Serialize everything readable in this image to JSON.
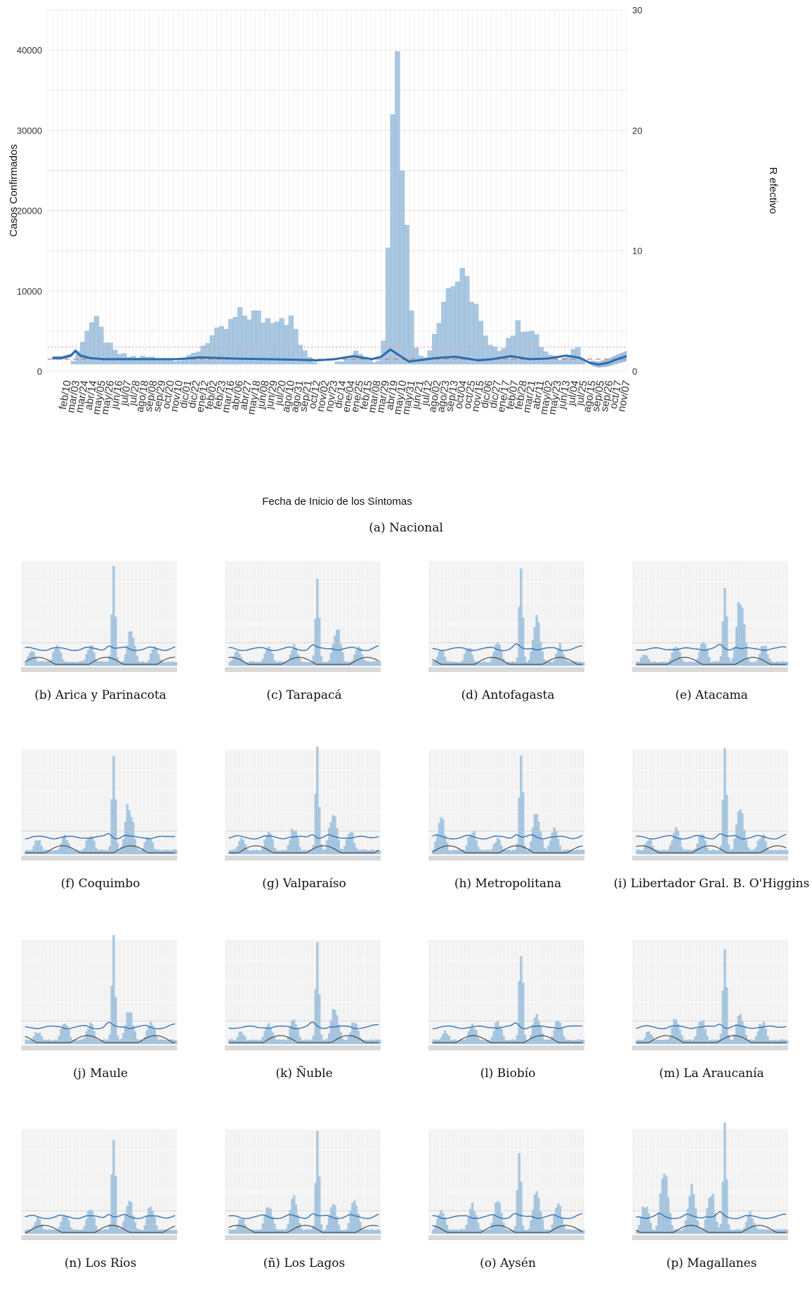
{
  "figure": {
    "main_caption": "(a) Nacional",
    "sub_captions": [
      "(b) Arica y Parinacota",
      "(c) Tarapacá",
      "(d) Antofagasta",
      "(e) Atacama",
      "(f) Coquimbo",
      "(g) Valparaíso",
      "(h) Metropolitana",
      "(i) Libertador Gral. B. O'Higgins",
      "(j) Maule",
      "(k) Ñuble",
      "(l) Biobío",
      "(m) La Araucanía",
      "(n) Los Ríos",
      "(ñ) Los Lagos",
      "(o) Aysén",
      "(p) Magallanes"
    ]
  },
  "colors": {
    "bars": "#a9c7e0",
    "bars_edge": "#7ea9cd",
    "r_line": "#2b6cb0",
    "r_band": "#7fa8cf",
    "ref_dotted": "#e8a0a0",
    "ref_dashed": "#e07070",
    "panel_bg": "#ebebeb",
    "grid": "#ffffff"
  },
  "chart_data": [
    {
      "type": "bar",
      "panel": "Nacional",
      "xlabel": "Fecha de Inicio de los Síntomas",
      "ylabel": "Casos Confirmados",
      "ylabel_right": "R efectivo",
      "ylim": [
        0,
        45000
      ],
      "y_ticks": [
        0,
        10000,
        20000,
        30000,
        40000
      ],
      "ylim_right": [
        0,
        30
      ],
      "y_ticks_right": [
        0,
        10,
        20,
        30
      ],
      "x_ticks": [
        "feb/10",
        "mar/03",
        "mar/24",
        "abr/14",
        "may/05",
        "may/26",
        "jun/16",
        "jul/07",
        "jul/28",
        "ago/18",
        "sep/08",
        "sep/29",
        "oct/20",
        "nov/10",
        "dic/01",
        "dic/22",
        "ene/12",
        "feb/02",
        "feb/23",
        "mar/16",
        "abr/06",
        "abr/27",
        "may/18",
        "jun/08",
        "jun/29",
        "jul/20",
        "ago/10",
        "ago/31",
        "sep/21",
        "oct/12",
        "nov/02",
        "nov/23",
        "dic/14",
        "ene/04",
        "ene/25",
        "feb/15",
        "mar/08",
        "mar/29",
        "abr/19",
        "may/10",
        "may/31",
        "jun/21",
        "jul/12",
        "ago/02",
        "ago/23",
        "sep/13",
        "oct/04",
        "oct/25",
        "nov/15",
        "dic/06",
        "dic/27",
        "ene/17",
        "feb/07",
        "feb/28",
        "mar/21",
        "abr/11",
        "may/02",
        "may/23",
        "jun/13",
        "jul/04",
        "jul/25",
        "ago/15",
        "sep/05",
        "sep/26",
        "oct/17",
        "nov/07"
      ],
      "cases_profile": [
        [
          0,
          0
        ],
        [
          3,
          200
        ],
        [
          6,
          1500
        ],
        [
          8,
          5000
        ],
        [
          10,
          6300
        ],
        [
          12,
          4500
        ],
        [
          14,
          2500
        ],
        [
          17,
          1800
        ],
        [
          22,
          1700
        ],
        [
          27,
          1450
        ],
        [
          30,
          1500
        ],
        [
          32,
          2300
        ],
        [
          35,
          4200
        ],
        [
          38,
          5000
        ],
        [
          41,
          6800
        ],
        [
          44,
          7200
        ],
        [
          47,
          6400
        ],
        [
          50,
          7300
        ],
        [
          53,
          6000
        ],
        [
          55,
          2500
        ],
        [
          58,
          1000
        ],
        [
          61,
          700
        ],
        [
          63,
          1200
        ],
        [
          65,
          2000
        ],
        [
          67,
          2600
        ],
        [
          69,
          1600
        ],
        [
          71,
          1000
        ],
        [
          72,
          1600
        ],
        [
          73,
          7000
        ],
        [
          74,
          30000
        ],
        [
          75,
          42000
        ],
        [
          76,
          35000
        ],
        [
          77,
          22000
        ],
        [
          78,
          12000
        ],
        [
          79,
          5000
        ],
        [
          80,
          2000
        ],
        [
          81,
          1500
        ],
        [
          82,
          2000
        ],
        [
          84,
          6000
        ],
        [
          86,
          10000
        ],
        [
          88,
          11500
        ],
        [
          90,
          11000
        ],
        [
          92,
          9500
        ],
        [
          94,
          4500
        ],
        [
          96,
          2500
        ],
        [
          98,
          3000
        ],
        [
          100,
          4500
        ],
        [
          102,
          5800
        ],
        [
          104,
          5500
        ],
        [
          106,
          3500
        ],
        [
          108,
          2000
        ],
        [
          110,
          1500
        ],
        [
          112,
          1600
        ],
        [
          113,
          2800
        ],
        [
          114,
          3800
        ],
        [
          115,
          2200
        ],
        [
          116,
          600
        ],
        [
          117,
          150
        ],
        [
          119,
          30
        ],
        [
          124,
          0
        ]
      ],
      "r_profile": [
        [
          1,
          1.1
        ],
        [
          3,
          1.1
        ],
        [
          5,
          1.3
        ],
        [
          6,
          1.7
        ],
        [
          7,
          1.3
        ],
        [
          9,
          1.1
        ],
        [
          12,
          1.0
        ],
        [
          20,
          1.0
        ],
        [
          28,
          1.0
        ],
        [
          33,
          1.15
        ],
        [
          40,
          1.05
        ],
        [
          47,
          1.0
        ],
        [
          54,
          0.95
        ],
        [
          58,
          0.9
        ],
        [
          62,
          1.0
        ],
        [
          66,
          1.25
        ],
        [
          70,
          1.0
        ],
        [
          72,
          1.2
        ],
        [
          74,
          1.8
        ],
        [
          76,
          1.3
        ],
        [
          78,
          0.8
        ],
        [
          80,
          0.9
        ],
        [
          84,
          1.1
        ],
        [
          88,
          1.2
        ],
        [
          93,
          0.9
        ],
        [
          96,
          1.0
        ],
        [
          100,
          1.25
        ],
        [
          104,
          1.0
        ],
        [
          108,
          1.05
        ],
        [
          112,
          1.3
        ],
        [
          115,
          1.1
        ],
        [
          117,
          0.7
        ],
        [
          119,
          0.55
        ],
        [
          121,
          0.7
        ],
        [
          123,
          1.0
        ],
        [
          125,
          1.25
        ]
      ],
      "reference_lines": [
        {
          "style": "dotted",
          "y_right": 2.0
        },
        {
          "style": "dashed",
          "y_right": 1.0
        }
      ]
    },
    {
      "type": "bar",
      "panel": "Arica y Parinacota",
      "peaks": [
        [
          5,
          0.15
        ],
        [
          18,
          0.2
        ],
        [
          35,
          0.2
        ],
        [
          47,
          1.0
        ],
        [
          56,
          0.35
        ],
        [
          68,
          0.2
        ]
      ]
    },
    {
      "type": "bar",
      "panel": "Tarapacá",
      "peaks": [
        [
          6,
          0.15
        ],
        [
          22,
          0.18
        ],
        [
          35,
          0.2
        ],
        [
          47,
          1.0
        ],
        [
          57,
          0.4
        ],
        [
          68,
          0.2
        ]
      ]
    },
    {
      "type": "bar",
      "panel": "Antofagasta",
      "peaks": [
        [
          6,
          0.15
        ],
        [
          20,
          0.18
        ],
        [
          35,
          0.25
        ],
        [
          47,
          1.0
        ],
        [
          55,
          0.45
        ],
        [
          67,
          0.2
        ]
      ]
    },
    {
      "type": "bar",
      "panel": "Atacama",
      "peaks": [
        [
          6,
          0.12
        ],
        [
          22,
          0.22
        ],
        [
          36,
          0.25
        ],
        [
          47,
          0.9
        ],
        [
          55,
          0.65
        ],
        [
          67,
          0.2
        ]
      ]
    },
    {
      "type": "bar",
      "panel": "Coquimbo",
      "peaks": [
        [
          8,
          0.15
        ],
        [
          22,
          0.18
        ],
        [
          35,
          0.2
        ],
        [
          47,
          1.0
        ],
        [
          55,
          0.5
        ],
        [
          65,
          0.18
        ]
      ]
    },
    {
      "type": "bar",
      "panel": "Valparaíso",
      "peaks": [
        [
          8,
          0.15
        ],
        [
          22,
          0.22
        ],
        [
          35,
          0.25
        ],
        [
          47,
          1.0
        ],
        [
          55,
          0.4
        ],
        [
          64,
          0.22
        ]
      ]
    },
    {
      "type": "bar",
      "panel": "Metropolitana",
      "peaks": [
        [
          6,
          0.35
        ],
        [
          22,
          0.25
        ],
        [
          35,
          0.15
        ],
        [
          47,
          1.0
        ],
        [
          55,
          0.4
        ],
        [
          64,
          0.25
        ]
      ]
    },
    {
      "type": "bar",
      "panel": "Libertador Gral. B. O'Higgins",
      "peaks": [
        [
          8,
          0.15
        ],
        [
          22,
          0.25
        ],
        [
          35,
          0.2
        ],
        [
          47,
          1.0
        ],
        [
          55,
          0.45
        ],
        [
          66,
          0.2
        ]
      ]
    },
    {
      "type": "bar",
      "panel": "Maule",
      "peaks": [
        [
          8,
          0.12
        ],
        [
          22,
          0.22
        ],
        [
          35,
          0.2
        ],
        [
          47,
          1.0
        ],
        [
          55,
          0.35
        ],
        [
          66,
          0.22
        ]
      ]
    },
    {
      "type": "bar",
      "panel": "Ñuble",
      "peaks": [
        [
          8,
          0.12
        ],
        [
          22,
          0.2
        ],
        [
          35,
          0.25
        ],
        [
          47,
          1.0
        ],
        [
          56,
          0.35
        ],
        [
          66,
          0.22
        ]
      ]
    },
    {
      "type": "bar",
      "panel": "Biobío",
      "peaks": [
        [
          8,
          0.12
        ],
        [
          22,
          0.2
        ],
        [
          35,
          0.22
        ],
        [
          47,
          1.0
        ],
        [
          55,
          0.3
        ],
        [
          66,
          0.25
        ]
      ]
    },
    {
      "type": "bar",
      "panel": "La Araucanía",
      "peaks": [
        [
          8,
          0.12
        ],
        [
          22,
          0.25
        ],
        [
          35,
          0.25
        ],
        [
          47,
          1.0
        ],
        [
          55,
          0.3
        ],
        [
          66,
          0.22
        ]
      ]
    },
    {
      "type": "bar",
      "panel": "Los Ríos",
      "peaks": [
        [
          8,
          0.15
        ],
        [
          22,
          0.2
        ],
        [
          35,
          0.25
        ],
        [
          47,
          1.0
        ],
        [
          55,
          0.35
        ],
        [
          66,
          0.28
        ]
      ]
    },
    {
      "type": "bar",
      "panel": "Los Lagos",
      "peaks": [
        [
          8,
          0.15
        ],
        [
          22,
          0.3
        ],
        [
          35,
          0.35
        ],
        [
          47,
          1.0
        ],
        [
          55,
          0.3
        ],
        [
          66,
          0.35
        ]
      ]
    },
    {
      "type": "bar",
      "panel": "Aysén",
      "peaks": [
        [
          6,
          0.25
        ],
        [
          22,
          0.3
        ],
        [
          35,
          0.35
        ],
        [
          46,
          0.85
        ],
        [
          55,
          0.4
        ],
        [
          66,
          0.3
        ]
      ]
    },
    {
      "type": "bar",
      "panel": "Magallanes",
      "peaks": [
        [
          6,
          0.3
        ],
        [
          16,
          0.65
        ],
        [
          30,
          0.45
        ],
        [
          40,
          0.4
        ],
        [
          47,
          1.0
        ],
        [
          60,
          0.2
        ]
      ]
    }
  ]
}
